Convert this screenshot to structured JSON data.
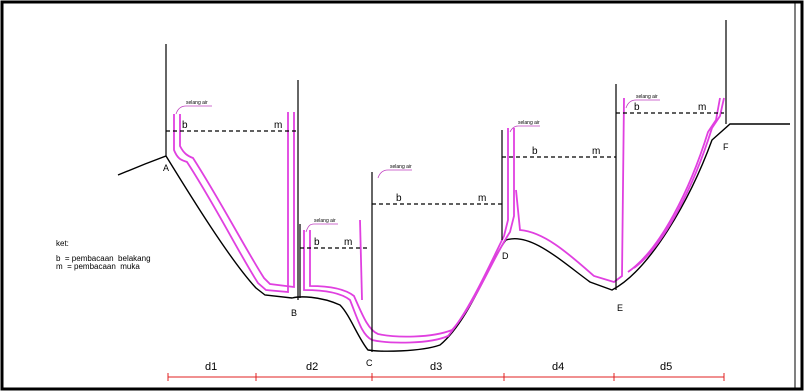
{
  "tube_label": "selang air",
  "points": [
    "A",
    "B",
    "C",
    "D",
    "E",
    "F"
  ],
  "b_label": "b",
  "m_label": "m",
  "legend": {
    "title": "ket:",
    "line1": "b  = pembacaan  belakang",
    "line2": "m  = pembacaan  muka"
  },
  "distances": [
    "d1",
    "d2",
    "d3",
    "d4",
    "d5"
  ],
  "colors": {
    "frame": "#000000",
    "hose": "#e040e0",
    "ground": "#000000",
    "dimension": "#e02020"
  }
}
